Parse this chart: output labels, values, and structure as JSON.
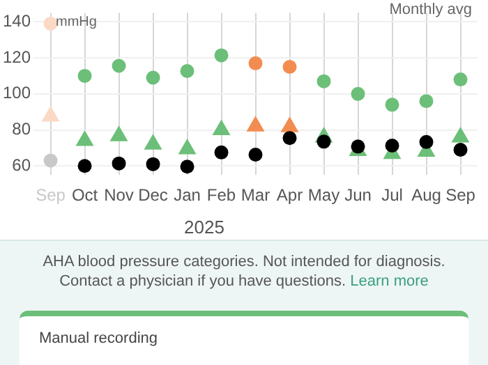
{
  "chart_data": {
    "type": "scatter",
    "subtitle": "Monthly avg",
    "ylabel": "mmHg",
    "categories": [
      "Sep",
      "Oct",
      "Nov",
      "Dec",
      "Jan",
      "Feb",
      "Mar",
      "Apr",
      "May",
      "Jun",
      "Jul",
      "Aug",
      "Sep"
    ],
    "series": [
      {
        "marker": "circle",
        "values": [
          139,
          110,
          115.6,
          109,
          112.7,
          121.4,
          117,
          115,
          107,
          100,
          94,
          96,
          108
        ],
        "colors": [
          "#fbd9c4",
          "#6cbf78",
          "#6cbf78",
          "#6cbf78",
          "#6cbf78",
          "#6cbf78",
          "#f28c50",
          "#f28c50",
          "#6cbf78",
          "#6cbf78",
          "#6cbf78",
          "#6cbf78",
          "#6cbf78"
        ]
      },
      {
        "marker": "triangle",
        "values": [
          87.6,
          74,
          76.6,
          72,
          69.4,
          80,
          82,
          81.7,
          76,
          68.4,
          66.8,
          68,
          76
        ],
        "colors": [
          "#fbd9c4",
          "#6cbf78",
          "#6cbf78",
          "#6cbf78",
          "#6cbf78",
          "#6cbf78",
          "#f28c50",
          "#f28c50",
          "#6cbf78",
          "#6cbf78",
          "#6cbf78",
          "#6cbf78",
          "#6cbf78"
        ]
      },
      {
        "marker": "circle",
        "values": [
          63,
          60,
          61.4,
          61,
          59.6,
          67.5,
          66.3,
          75.5,
          73.5,
          70.8,
          71.3,
          73.3,
          69
        ],
        "colors": [
          "#c8c8c8",
          "#000000",
          "#000000",
          "#000000",
          "#000000",
          "#000000",
          "#000000",
          "#000000",
          "#000000",
          "#000000",
          "#000000",
          "#000000",
          "#000000"
        ]
      }
    ],
    "ylim": [
      55,
      145
    ],
    "yticks": [
      60,
      80,
      100,
      120,
      140
    ],
    "grid": true,
    "legend": false,
    "annotations": [
      "2025",
      "AHA blood pressure categories. Not intended for diagnosis. Contact a physician if you have questions.",
      "Learn more",
      "Manual recording"
    ]
  }
}
